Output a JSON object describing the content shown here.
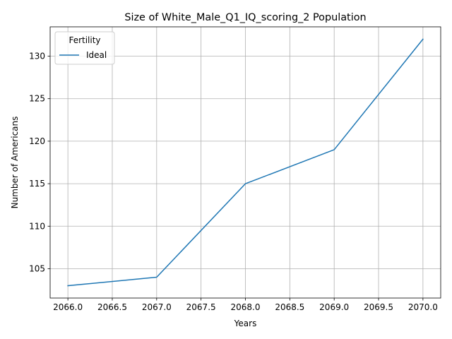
{
  "chart_data": {
    "type": "line",
    "title": "Size of White_Male_Q1_IQ_scoring_2 Population",
    "xlabel": "Years",
    "ylabel": "Number of Americans",
    "x": [
      2066,
      2067,
      2068,
      2069,
      2070
    ],
    "series": [
      {
        "name": "Ideal",
        "color": "#1f77b4",
        "values": [
          103,
          104,
          115,
          119,
          132
        ]
      }
    ],
    "xlim": [
      2065.8,
      2070.2
    ],
    "ylim": [
      101.55,
      133.45
    ],
    "xticks": [
      2066.0,
      2066.5,
      2067.0,
      2067.5,
      2068.0,
      2068.5,
      2069.0,
      2069.5,
      2070.0
    ],
    "xtick_labels": [
      "2066.0",
      "2066.5",
      "2067.0",
      "2067.5",
      "2068.0",
      "2068.5",
      "2069.0",
      "2069.5",
      "2070.0"
    ],
    "yticks": [
      105,
      110,
      115,
      120,
      125,
      130
    ],
    "ytick_labels": [
      "105",
      "110",
      "115",
      "120",
      "125",
      "130"
    ],
    "grid": true,
    "grid_color": "#b0b0b0",
    "legend": {
      "title": "Fertility",
      "placement": "upper-left"
    }
  }
}
